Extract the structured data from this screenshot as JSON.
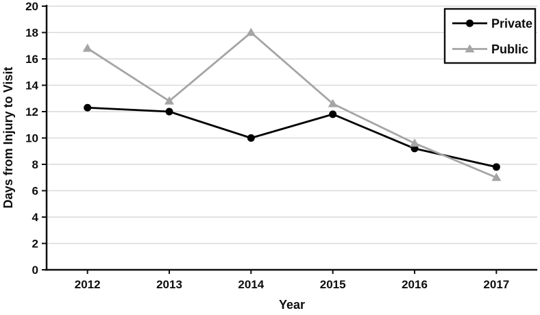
{
  "chart_data": {
    "type": "line",
    "title": "",
    "xlabel": "Year",
    "ylabel": "Days from Injury to Visit",
    "categories": [
      "2012",
      "2013",
      "2014",
      "2015",
      "2016",
      "2017"
    ],
    "series": [
      {
        "name": "Private",
        "marker": "circle",
        "color": "#000000",
        "values": [
          12.3,
          12.0,
          10.0,
          11.8,
          9.2,
          7.8
        ]
      },
      {
        "name": "Public",
        "marker": "triangle",
        "color": "#a5a5a5",
        "values": [
          16.8,
          12.8,
          18.0,
          12.6,
          9.6,
          7.0
        ]
      }
    ],
    "ylim": [
      0,
      20
    ],
    "yticks": [
      0,
      2,
      4,
      6,
      8,
      10,
      12,
      14,
      16,
      18,
      20
    ],
    "grid": "horizontal-only",
    "legend_position": "top-right",
    "colors": {
      "axis": "#0d0d0d",
      "gridline": "#d9d9d9",
      "legend_border": "#0d0d0d",
      "legend_background": "#ffffff",
      "background": "#ffffff"
    }
  }
}
